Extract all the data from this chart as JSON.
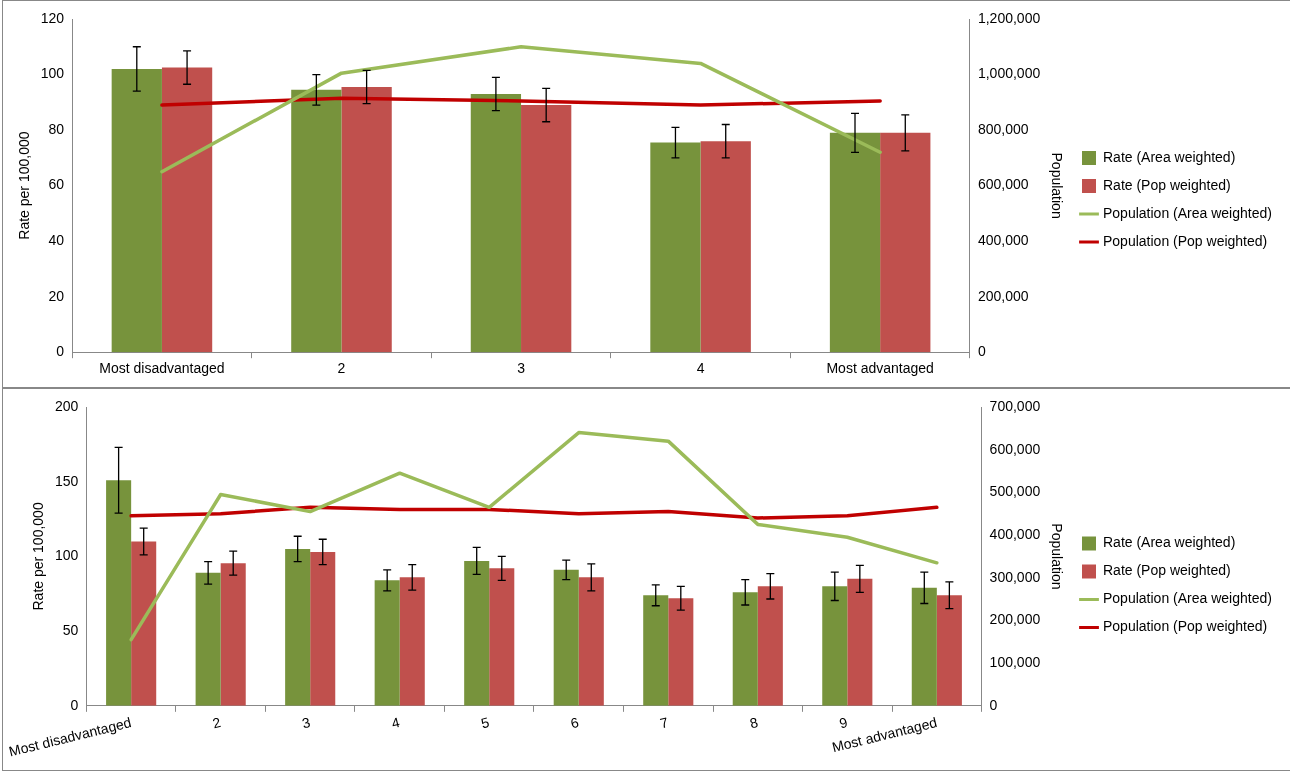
{
  "chart_data": [
    {
      "type": "bar",
      "categories": [
        "Most disadvantaged",
        "2",
        "3",
        "4",
        "Most advantaged"
      ],
      "ylabel": "Rate per 100,000",
      "y2label": "Population",
      "ylim": [
        0,
        120
      ],
      "yticks": [
        0,
        20,
        40,
        60,
        80,
        100,
        120
      ],
      "y2lim": [
        0,
        1200000
      ],
      "y2ticks": [
        {
          "value": 0,
          "label": "0"
        },
        {
          "value": 200000,
          "label": "200,000"
        },
        {
          "value": 400000,
          "label": "400,000"
        },
        {
          "value": 600000,
          "label": "600,000"
        },
        {
          "value": 800000,
          "label": "800,000"
        },
        {
          "value": 1000000,
          "label": "1,000,000"
        },
        {
          "value": 1200000,
          "label": "1,200,000"
        }
      ],
      "legend": "right",
      "grid": false,
      "series": [
        {
          "name": "Rate (Area weighted)",
          "color": "#77933c",
          "values": [
            102,
            94.5,
            93,
            75.5,
            79
          ],
          "errors": [
            8,
            5.5,
            6,
            5.5,
            7
          ]
        },
        {
          "name": "Rate (Pop weighted)",
          "color": "#c0504d",
          "values": [
            102.5,
            95.5,
            89,
            76,
            79
          ],
          "errors": [
            6,
            6,
            6,
            6,
            6.5
          ]
        },
        {
          "name": "Population (Area weighted)",
          "type": "line",
          "axis": "y2",
          "color": "#9bbb59",
          "values": [
            650000,
            1005000,
            1100000,
            1040000,
            720000
          ]
        },
        {
          "name": "Population (Pop weighted)",
          "type": "line",
          "axis": "y2",
          "color": "#c00000",
          "values": [
            890000,
            915000,
            905000,
            890000,
            905000
          ]
        }
      ]
    },
    {
      "type": "bar",
      "categories": [
        "Most disadvantaged",
        "2",
        "3",
        "4",
        "5",
        "6",
        "7",
        "8",
        "9",
        "Most advantaged"
      ],
      "ylabel": "Rate per 100,000",
      "y2label": "Population",
      "ylim": [
        0,
        200
      ],
      "yticks": [
        0,
        50,
        100,
        150,
        200
      ],
      "y2lim": [
        0,
        700000
      ],
      "y2ticks": [
        {
          "value": 0,
          "label": "0"
        },
        {
          "value": 100000,
          "label": "100,000"
        },
        {
          "value": 200000,
          "label": "200,000"
        },
        {
          "value": 300000,
          "label": "300,000"
        },
        {
          "value": 400000,
          "label": "400,000"
        },
        {
          "value": 500000,
          "label": "500,000"
        },
        {
          "value": 600000,
          "label": "600,000"
        },
        {
          "value": 700000,
          "label": "700,000"
        }
      ],
      "legend": "right",
      "grid": false,
      "series": [
        {
          "name": "Rate (Area weighted)",
          "color": "#77933c",
          "values": [
            151,
            89,
            105,
            84,
            97,
            91,
            74,
            76,
            80,
            79
          ],
          "errors": [
            22,
            7.5,
            8.5,
            7,
            9,
            6.5,
            7,
            8.5,
            9.5,
            10.5
          ]
        },
        {
          "name": "Rate (Pop weighted)",
          "color": "#c0504d",
          "values": [
            110,
            95.5,
            103,
            86,
            92,
            86,
            72,
            80,
            85,
            74
          ],
          "errors": [
            9,
            8,
            8.5,
            8.5,
            8,
            9,
            8,
            8.5,
            9,
            9
          ]
        },
        {
          "name": "Population (Area weighted)",
          "type": "line",
          "axis": "y2",
          "color": "#9bbb59",
          "values": [
            155000,
            495000,
            455000,
            545000,
            465000,
            640000,
            620000,
            425000,
            395000,
            335000
          ]
        },
        {
          "name": "Population (Pop weighted)",
          "type": "line",
          "axis": "y2",
          "color": "#c00000",
          "values": [
            445000,
            450000,
            465000,
            460000,
            460000,
            450000,
            455000,
            440000,
            445000,
            465000
          ]
        }
      ]
    }
  ]
}
